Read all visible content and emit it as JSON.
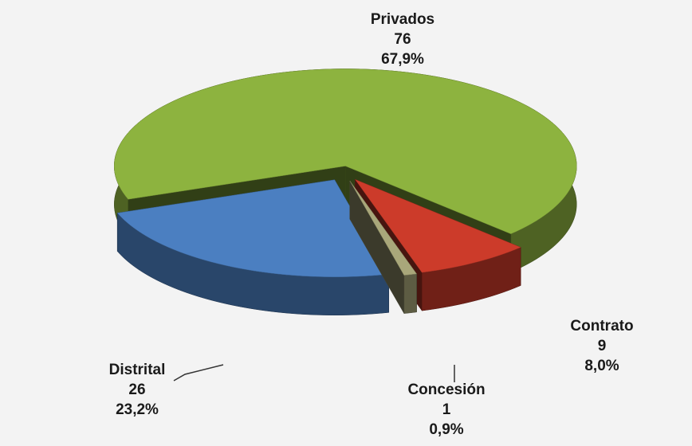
{
  "chart_data": {
    "type": "pie3d",
    "categories": [
      "Privados",
      "Contrato",
      "Concesión",
      "Distrital"
    ],
    "values": [
      76,
      9,
      1,
      26
    ],
    "percents": [
      67.9,
      8.0,
      0.9,
      23.2
    ],
    "percent_labels": [
      "67,9%",
      "8,0%",
      "0,9%",
      "23,2%"
    ],
    "colors": [
      "#8db33f",
      "#cc3b2a",
      "#a9a77a",
      "#4b7fc1"
    ]
  }
}
